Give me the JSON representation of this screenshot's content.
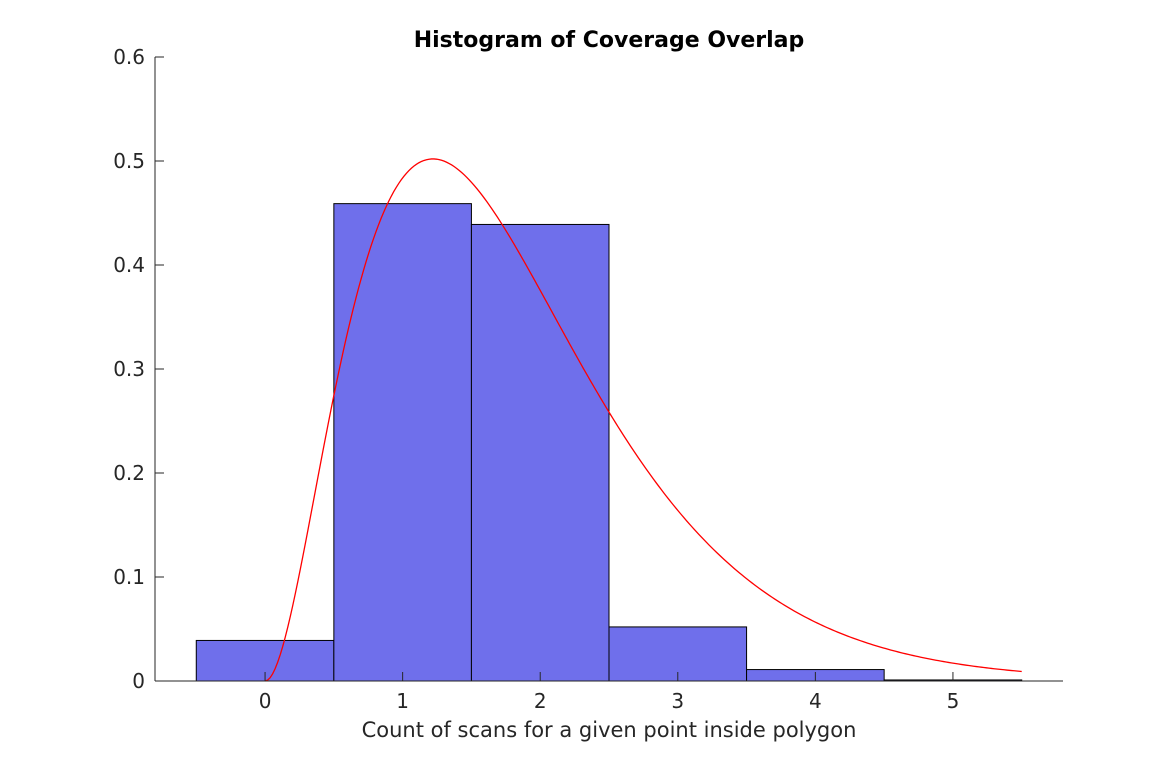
{
  "chart_data": {
    "type": "bar",
    "title": "Histogram of Coverage Overlap",
    "xlabel": "Count of scans for a given point inside polygon",
    "ylabel": "",
    "xlim": [
      -0.8,
      5.8
    ],
    "ylim": [
      0,
      0.6
    ],
    "xticks": [
      "0",
      "1",
      "2",
      "3",
      "4",
      "5"
    ],
    "yticks": [
      "0",
      "0.1",
      "0.2",
      "0.3",
      "0.4",
      "0.5",
      "0.6"
    ],
    "bin_width": 1,
    "bins": [
      {
        "center": 0,
        "value": 0.039
      },
      {
        "center": 1,
        "value": 0.459
      },
      {
        "center": 2,
        "value": 0.439
      },
      {
        "center": 3,
        "value": 0.052
      },
      {
        "center": 4,
        "value": 0.011
      },
      {
        "center": 5,
        "value": 0.001
      }
    ],
    "fit_curve": {
      "type": "gamma-like density",
      "x_start": 0,
      "x_end": 5.5,
      "peak_x": 1.22,
      "peak_y": 0.502,
      "color": "#ff0000"
    },
    "bar_color": "#6f6feb",
    "bar_edge_color": "#000000",
    "grid": false
  }
}
